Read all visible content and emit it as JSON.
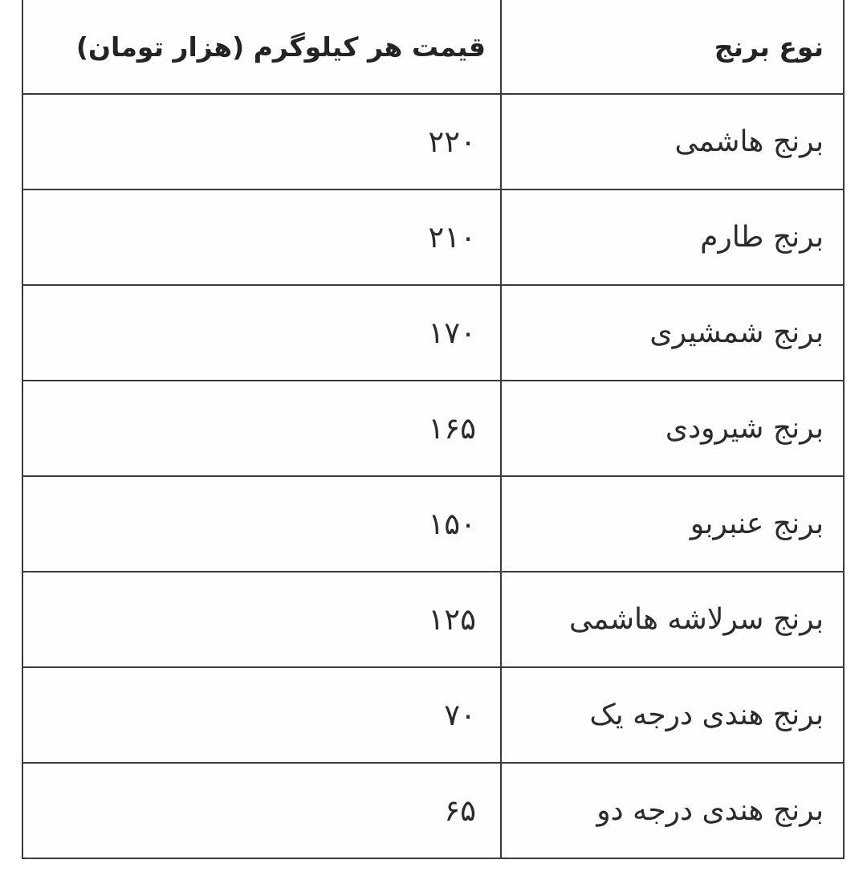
{
  "page": {
    "background": "#ffffff",
    "text_color": "#2b2b2b",
    "border_color": "#3b3b3b",
    "direction": "rtl",
    "language": "fa"
  },
  "table": {
    "headers": {
      "type": "نوع برنج",
      "price": "قیمت هر کیلوگرم (هزار تومان)"
    },
    "rows": [
      {
        "type": "برنج هاشمی",
        "price": "۲۲۰"
      },
      {
        "type": "برنج طارم",
        "price": "۲۱۰"
      },
      {
        "type": "برنج شمشیری",
        "price": "۱۷۰"
      },
      {
        "type": "برنج شیرودی",
        "price": "۱۶۵"
      },
      {
        "type": "برنج عنبربو",
        "price": "۱۵۰"
      },
      {
        "type": "برنج سرلاشه هاشمی",
        "price": "۱۲۵"
      },
      {
        "type": "برنج هندی درجه یک",
        "price": "۷۰"
      },
      {
        "type": "برنج هندی درجه دو",
        "price": "۶۵"
      }
    ]
  }
}
